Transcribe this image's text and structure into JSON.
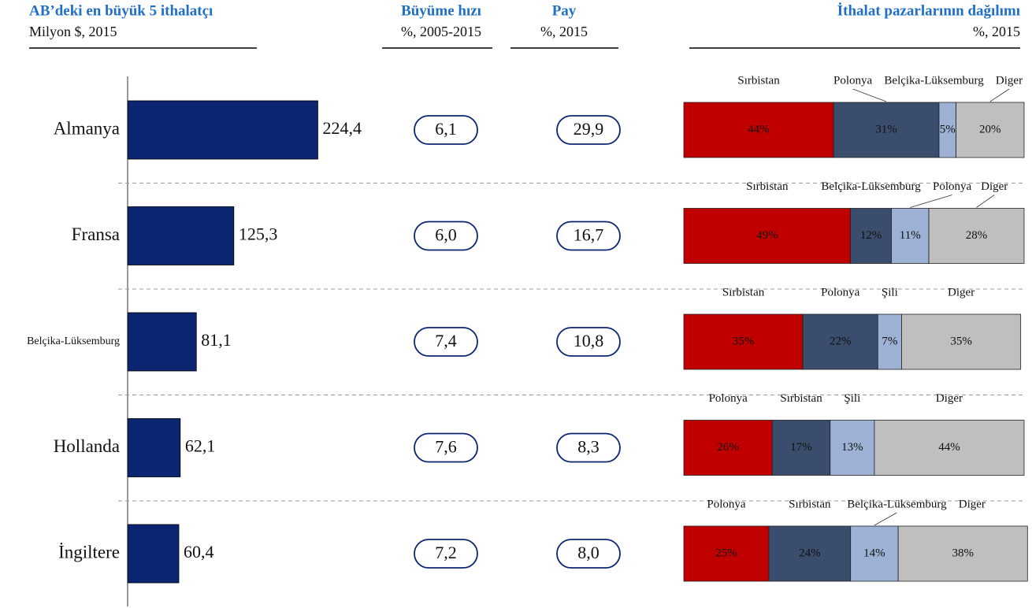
{
  "chart_data": [
    {
      "type": "bar",
      "title": "AB’deki en büyük 5 ithalatçı",
      "subtitle": "Milyon $, 2015",
      "categories": [
        "Almanya",
        "Fransa",
        "Belçika-Lüksemburg",
        "Hollanda",
        "İngiltere"
      ],
      "values": [
        224.4,
        125.3,
        81.1,
        62.1,
        60.4
      ],
      "value_labels": [
        "224,4",
        "125,3",
        "81,1",
        "62,1",
        "60,4"
      ],
      "color": "#0b2571"
    },
    {
      "type": "table",
      "title": "Büyüme hızı",
      "subtitle": "%, 2005-2015",
      "values": [
        6.1,
        6.0,
        7.4,
        7.6,
        7.2
      ],
      "value_labels": [
        "6,1",
        "6,0",
        "7,4",
        "7,6",
        "7,2"
      ]
    },
    {
      "type": "table",
      "title": "Pay",
      "subtitle": "%, 2015",
      "values": [
        29.9,
        16.7,
        10.8,
        8.3,
        8.0
      ],
      "value_labels": [
        "29,9",
        "16,7",
        "10,8",
        "8,3",
        "8,0"
      ]
    },
    {
      "type": "stacked-bar",
      "title": "İthalat pazarlarının dağılımı",
      "subtitle": "%, 2015",
      "colors": [
        "#c00000",
        "#3b4d6d",
        "#9db1d4",
        "#bfbfbf"
      ],
      "rows": [
        {
          "names": [
            "Sırbistan",
            "Polonya",
            "Belçika-Lüksemburg",
            "Diger"
          ],
          "values": [
            44,
            31,
            5,
            20
          ],
          "value_labels": [
            "44%",
            "31%",
            "5%",
            "20%"
          ]
        },
        {
          "names": [
            "Sırbistan",
            "Belçika-Lüksemburg",
            "Polonya",
            "Diger"
          ],
          "values": [
            49,
            12,
            11,
            28
          ],
          "value_labels": [
            "49%",
            "12%",
            "11%",
            "28%"
          ]
        },
        {
          "names": [
            "Sırbistan",
            "Polonya",
            "Şili",
            "Diger"
          ],
          "values": [
            35,
            22,
            7,
            35
          ],
          "value_labels": [
            "35%",
            "22%",
            "7%",
            "35%"
          ]
        },
        {
          "names": [
            "Polonya",
            "Sırbistan",
            "Şili",
            "Diger"
          ],
          "values": [
            26,
            17,
            13,
            44
          ],
          "value_labels": [
            "26%",
            "17%",
            "13%",
            "44%"
          ]
        },
        {
          "names": [
            "Polonya",
            "Sırbistan",
            "Belçika-Lüksemburg",
            "Diger"
          ],
          "values": [
            25,
            24,
            14,
            38
          ],
          "value_labels": [
            "25%",
            "24%",
            "14%",
            "38%"
          ]
        }
      ]
    }
  ]
}
